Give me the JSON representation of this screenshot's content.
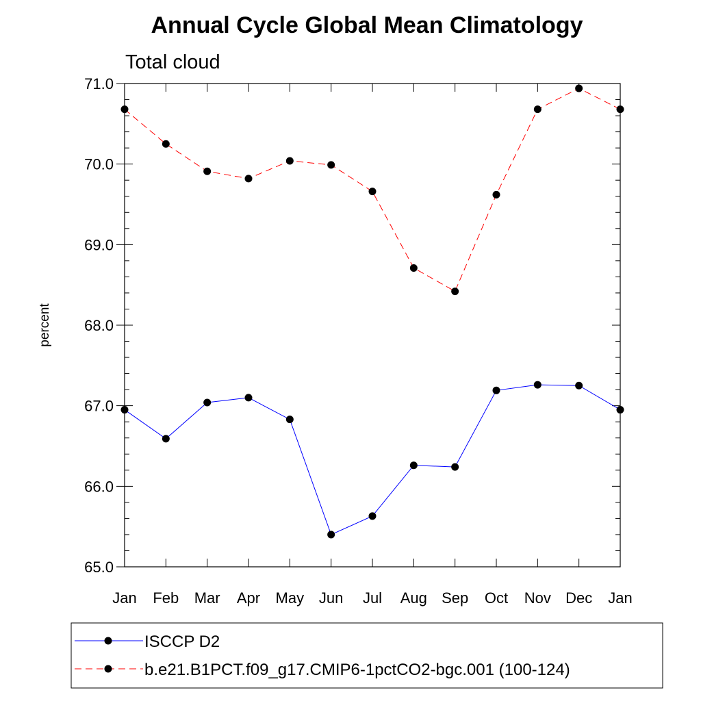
{
  "chart_data": {
    "type": "line",
    "title": "Annual Cycle Global Mean Climatology",
    "subtitle": "Total cloud",
    "xlabel": "",
    "ylabel": "percent",
    "categories": [
      "Jan",
      "Feb",
      "Mar",
      "Apr",
      "May",
      "Jun",
      "Jul",
      "Aug",
      "Sep",
      "Oct",
      "Nov",
      "Dec",
      "Jan"
    ],
    "ylim": [
      65.0,
      71.0
    ],
    "yticks": [
      "65.0",
      "66.0",
      "67.0",
      "68.0",
      "69.0",
      "70.0",
      "71.0"
    ],
    "grid": false,
    "legend_position": "bottom",
    "series": [
      {
        "name": "ISCCP D2",
        "color": "#0000ff",
        "line_style": "solid",
        "marker": "filled-circle",
        "values": [
          66.95,
          66.59,
          67.04,
          67.1,
          66.83,
          65.4,
          65.63,
          66.26,
          66.24,
          67.19,
          67.26,
          67.25,
          66.95
        ]
      },
      {
        "name": "b.e21.B1PCT.f09_g17.CMIP6-1pctCO2-bgc.001 (100-124)",
        "color": "#ff0000",
        "line_style": "dashed",
        "marker": "filled-circle",
        "values": [
          70.68,
          70.25,
          69.91,
          69.82,
          70.04,
          69.99,
          69.66,
          68.71,
          68.42,
          69.62,
          70.68,
          70.94,
          70.68
        ]
      }
    ]
  }
}
